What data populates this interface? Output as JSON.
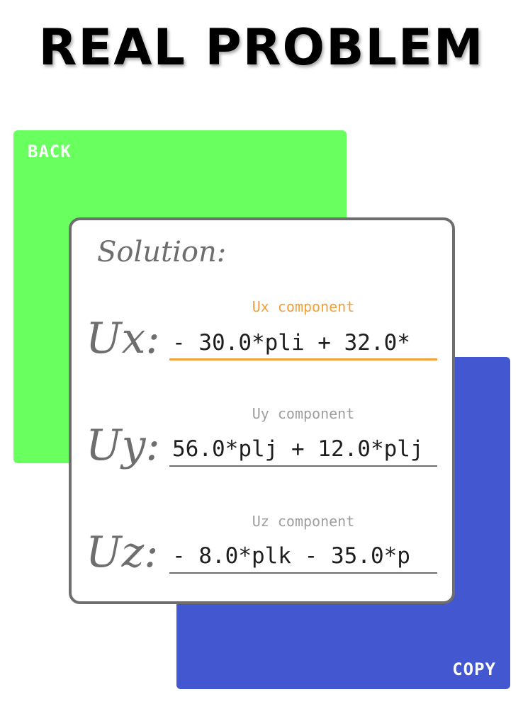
{
  "header": {
    "title": "REAL PROBLEM"
  },
  "back_panel": {
    "label": "BACK",
    "color": "#69ff5f"
  },
  "copy_panel": {
    "label": "COPY",
    "color": "#4358d0"
  },
  "solution": {
    "title": "Solution:",
    "components": [
      {
        "symbol": "Ux:",
        "label": "Ux component",
        "value": "- 30.0*pli + 32.0*",
        "active": true
      },
      {
        "symbol": "Uy:",
        "label": "Uy component",
        "value": "56.0*plj + 12.0*plj",
        "active": false
      },
      {
        "symbol": "Uz:",
        "label": "Uz component",
        "value": "- 8.0*plk - 35.0*p",
        "active": false
      }
    ]
  },
  "colors": {
    "accent_active": "#f0a03a",
    "card_border": "#6e6e6e"
  }
}
